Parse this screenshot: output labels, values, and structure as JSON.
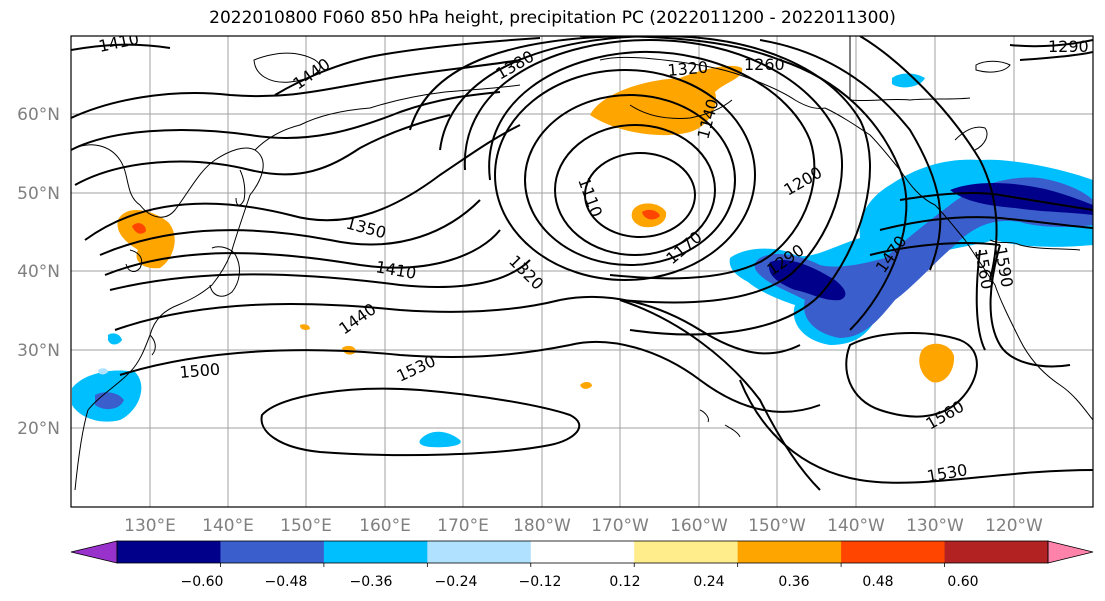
{
  "title": "2022010800 F060 850 hPa height, precipitation PC (2022011200 - 2022011300)",
  "map": {
    "lon_ticks": [
      "130°E",
      "140°E",
      "150°E",
      "160°E",
      "170°E",
      "180°W",
      "170°W",
      "160°W",
      "150°W",
      "140°W",
      "130°W",
      "120°W"
    ],
    "lat_ticks": [
      "60°N",
      "50°N",
      "40°N",
      "30°N",
      "20°N"
    ],
    "contour_levels": [
      "1410",
      "1440",
      "1380",
      "1320",
      "1290",
      "1260",
      "1140",
      "1110",
      "1350",
      "1200",
      "1170",
      "1410",
      "1290",
      "1320",
      "1470",
      "1440",
      "1500",
      "1530",
      "1560",
      "1590",
      "1560",
      "1530"
    ]
  },
  "colorbar": {
    "ticks": [
      "−0.60",
      "−0.48",
      "−0.36",
      "−0.24",
      "−0.12",
      "0.12",
      "0.24",
      "0.36",
      "0.48",
      "0.60"
    ],
    "colors": [
      "#9932cc",
      "#00008b",
      "#3a5fcd",
      "#00bfff",
      "#b0e2ff",
      "#ffffff",
      "#ffec8b",
      "#ffa500",
      "#ff4500",
      "#b22222",
      "#ff82ab"
    ]
  }
}
